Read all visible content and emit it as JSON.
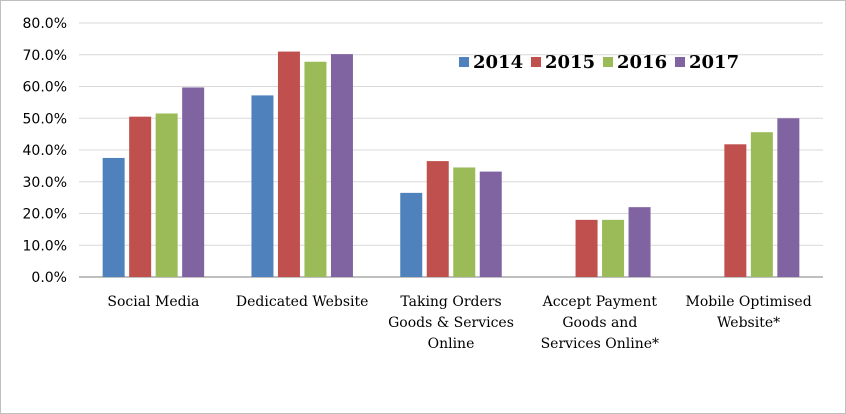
{
  "chart_data": {
    "type": "bar",
    "title": "",
    "xlabel": "",
    "ylabel": "",
    "ylim": [
      0,
      0.8
    ],
    "yticks": [
      "0.0%",
      "10.0%",
      "20.0%",
      "30.0%",
      "40.0%",
      "50.0%",
      "60.0%",
      "70.0%",
      "80.0%"
    ],
    "grid": "horizontal",
    "legend_position": "top-right",
    "categories": [
      [
        "Social Media"
      ],
      [
        "Dedicated Website"
      ],
      [
        "Taking Orders",
        "Goods & Services",
        "Online"
      ],
      [
        "Accept Payment",
        "Goods and",
        "Services Online*"
      ],
      [
        "Mobile Optimised",
        "Website*"
      ]
    ],
    "series": [
      {
        "name": "2014",
        "color": "#4f81bd",
        "values": [
          0.375,
          0.572,
          0.265,
          null,
          null
        ]
      },
      {
        "name": "2015",
        "color": "#c0504d",
        "values": [
          0.505,
          0.71,
          0.365,
          0.18,
          0.418
        ]
      },
      {
        "name": "2016",
        "color": "#9bbb59",
        "values": [
          0.515,
          0.678,
          0.345,
          0.18,
          0.456
        ]
      },
      {
        "name": "2017",
        "color": "#8064a2",
        "values": [
          0.597,
          0.702,
          0.332,
          0.22,
          0.5
        ]
      }
    ]
  }
}
